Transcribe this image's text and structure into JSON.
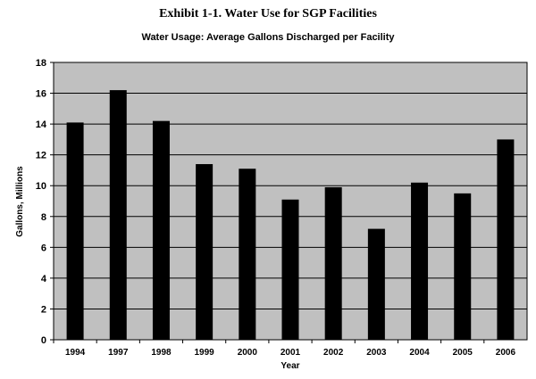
{
  "exhibit_title": "Exhibit 1-1. Water Use for SGP Facilities",
  "chart_data": {
    "type": "bar",
    "title": "Water Usage: Average Gallons Discharged per Facility",
    "xlabel": "Year",
    "ylabel": "Gallons, Millions",
    "categories": [
      "1994",
      "1997",
      "1998",
      "1999",
      "2000",
      "2001",
      "2002",
      "2003",
      "2004",
      "2005",
      "2006"
    ],
    "values": [
      14.1,
      16.2,
      14.2,
      11.4,
      11.1,
      9.1,
      9.9,
      7.2,
      10.2,
      9.5,
      13.0
    ],
    "ylim": [
      0,
      18
    ],
    "yticks": [
      0,
      2,
      4,
      6,
      8,
      10,
      12,
      14,
      16,
      18
    ],
    "grid": true,
    "legend": "none",
    "colors": {
      "plot_bg": "#c0c0c0",
      "bar": "#000000",
      "grid": "#000000"
    }
  }
}
